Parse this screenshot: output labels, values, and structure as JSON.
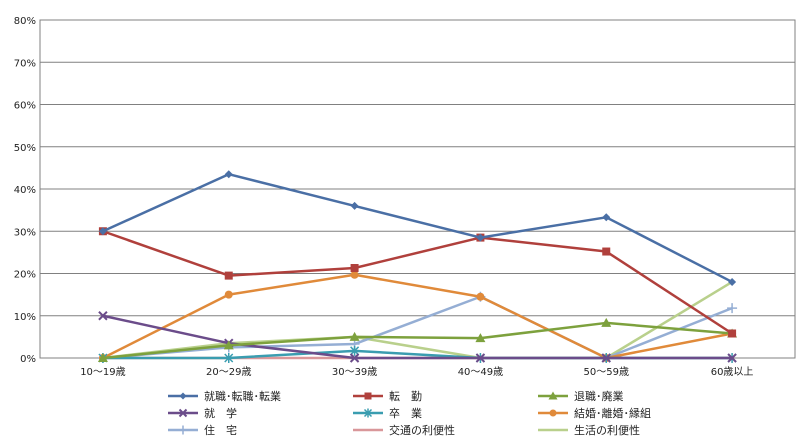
{
  "chart_data": {
    "type": "line",
    "categories": [
      "10～19歳",
      "20～29歳",
      "30～39歳",
      "40～49歳",
      "50～59歳",
      "60歳以上"
    ],
    "ylim": [
      0,
      80
    ],
    "y_ticks": [
      "0%",
      "10%",
      "20%",
      "30%",
      "40%",
      "50%",
      "60%",
      "70%",
      "80%"
    ],
    "y_unit": "%",
    "grid": "horizontal",
    "legend_position": "bottom",
    "series": [
      {
        "name": "就職･転職･転業",
        "color": "#4a6fa5",
        "marker": "diamond",
        "values": [
          30,
          43.5,
          36,
          28.5,
          33.3,
          18
        ]
      },
      {
        "name": "転　勤",
        "color": "#b0403c",
        "marker": "square",
        "values": [
          30,
          19.5,
          21.3,
          28.5,
          25.2,
          5.8
        ]
      },
      {
        "name": "退職･廃業",
        "color": "#7da13d",
        "marker": "triangle",
        "values": [
          0,
          3,
          5,
          4.7,
          8.3,
          5.8
        ]
      },
      {
        "name": "就　学",
        "color": "#6b4c8a",
        "marker": "x",
        "values": [
          10,
          3.5,
          0,
          0,
          0,
          0
        ]
      },
      {
        "name": "卒　業",
        "color": "#3a9db0",
        "marker": "asterisk",
        "values": [
          0,
          0,
          1.7,
          0,
          0,
          0
        ]
      },
      {
        "name": "結婚･離婚･縁組",
        "color": "#e08a3a",
        "marker": "circle",
        "values": [
          0,
          15,
          19.7,
          14.5,
          0,
          5.8
        ]
      },
      {
        "name": "住　宅",
        "color": "#95aed4",
        "marker": "plus",
        "values": [
          0,
          2.5,
          3.3,
          14.5,
          0,
          11.8
        ]
      },
      {
        "name": "交通の利便性",
        "color": "#d9979a",
        "marker": "none",
        "values": [
          0,
          0,
          0,
          0,
          0,
          0
        ]
      },
      {
        "name": "生活の利便性",
        "color": "#b9d08c",
        "marker": "none",
        "values": [
          0,
          3.5,
          5,
          0,
          0,
          18
        ]
      }
    ]
  }
}
